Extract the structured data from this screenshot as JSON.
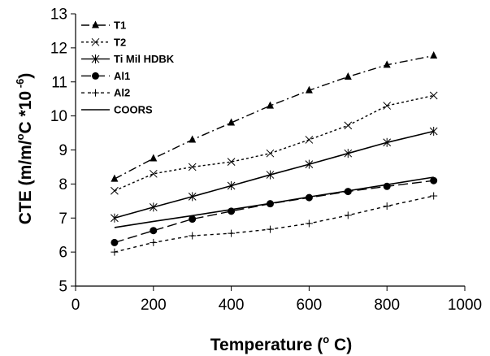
{
  "chart_data": {
    "type": "line",
    "xlabel": "Temperature (",
    "xlabel_sup": "o",
    "xlabel_tail": " C)",
    "ylabel": "CTE (m/m/",
    "ylabel_sup1": "o",
    "ylabel_mid": "C *10",
    "ylabel_sup2": " -6",
    "ylabel_tail": ")",
    "xlim": [
      0,
      1000
    ],
    "ylim": [
      5,
      13
    ],
    "x_ticks": [
      "0",
      "200",
      "400",
      "600",
      "800",
      "1000"
    ],
    "y_ticks": [
      "5",
      "6",
      "7",
      "8",
      "9",
      "10",
      "11",
      "12",
      "13"
    ],
    "grid": false,
    "legend_position": "top-left",
    "series": [
      {
        "name": "T1",
        "x": [
          100,
          200,
          300,
          400,
          500,
          600,
          700,
          800,
          920
        ],
        "y": [
          8.15,
          8.75,
          9.3,
          9.8,
          10.3,
          10.75,
          11.15,
          11.5,
          11.77
        ],
        "marker": "triangle",
        "dash": "longdash-dot"
      },
      {
        "name": "T2",
        "x": [
          100,
          200,
          300,
          400,
          500,
          600,
          700,
          800,
          920
        ],
        "y": [
          7.8,
          8.3,
          8.5,
          8.65,
          8.9,
          9.3,
          9.72,
          10.3,
          10.6
        ],
        "marker": "x",
        "dash": "dotted"
      },
      {
        "name": "Ti Mil HDBK",
        "x": [
          100,
          200,
          300,
          400,
          500,
          600,
          700,
          800,
          920
        ],
        "y": [
          7.0,
          7.32,
          7.63,
          7.95,
          8.27,
          8.58,
          8.9,
          9.22,
          9.55
        ],
        "marker": "asterisk",
        "dash": "solid"
      },
      {
        "name": "Al1",
        "x": [
          100,
          200,
          300,
          400,
          500,
          600,
          700,
          800,
          920
        ],
        "y": [
          6.28,
          6.63,
          6.97,
          7.2,
          7.42,
          7.6,
          7.78,
          7.93,
          8.1
        ],
        "marker": "circle",
        "dash": "longdash"
      },
      {
        "name": "Al2",
        "x": [
          100,
          200,
          300,
          400,
          500,
          600,
          700,
          800,
          920
        ],
        "y": [
          6.0,
          6.28,
          6.48,
          6.55,
          6.67,
          6.84,
          7.08,
          7.35,
          7.65
        ],
        "marker": "plus",
        "dash": "shortdash"
      },
      {
        "name": "COORS",
        "x": [
          100,
          200,
          300,
          400,
          500,
          600,
          700,
          800,
          920
        ],
        "y": [
          6.72,
          6.9,
          7.07,
          7.25,
          7.43,
          7.62,
          7.8,
          7.98,
          8.2
        ],
        "marker": "none",
        "dash": "solid"
      }
    ]
  }
}
